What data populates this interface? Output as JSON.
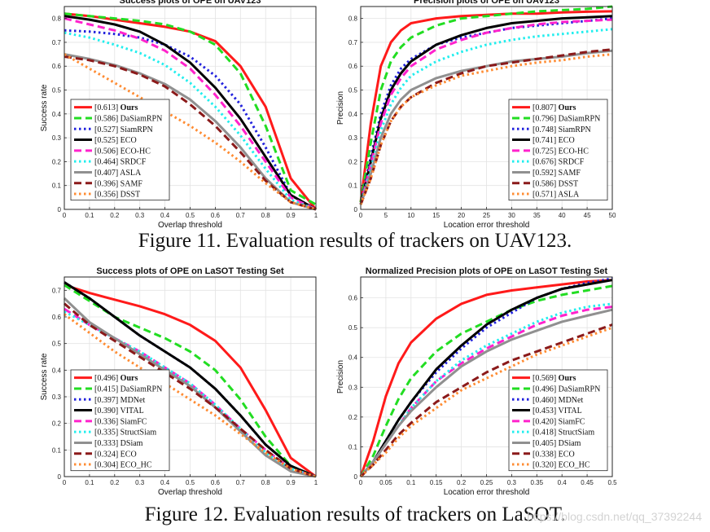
{
  "captions": {
    "fig11": "Figure 11. Evaluation results of trackers on UAV123.",
    "fig12": "Figure 12. Evaluation results of trackers on LaSOT."
  },
  "watermark": "https://blog.csdn.net/qq_37392244",
  "chart_data": [
    {
      "id": "uav-success",
      "type": "line",
      "title": "Success plots of OPE on UAV123",
      "xlabel": "Overlap threshold",
      "ylabel": "Success rate",
      "xlim": [
        0,
        1
      ],
      "ylim": [
        0,
        0.85
      ],
      "xticks": [
        0,
        0.1,
        0.2,
        0.3,
        0.4,
        0.5,
        0.6,
        0.7,
        0.8,
        0.9,
        1
      ],
      "yticks": [
        0,
        0.1,
        0.2,
        0.3,
        0.4,
        0.5,
        0.6,
        0.7,
        0.8
      ],
      "grid": true,
      "legend_position": "bottom-left",
      "x": [
        0,
        0.1,
        0.2,
        0.3,
        0.4,
        0.5,
        0.6,
        0.7,
        0.8,
        0.9,
        1
      ],
      "series": [
        {
          "name": "Ours",
          "score": "0.613",
          "color": "#ff1a1a",
          "dash": "solid",
          "bold": true,
          "values": [
            0.82,
            0.81,
            0.795,
            0.78,
            0.765,
            0.745,
            0.705,
            0.6,
            0.43,
            0.13,
            0.0
          ]
        },
        {
          "name": "DaSiamRPN",
          "score": "0.586",
          "color": "#22dd22",
          "dash": "dash",
          "values": [
            0.82,
            0.81,
            0.8,
            0.79,
            0.775,
            0.745,
            0.69,
            0.57,
            0.35,
            0.08,
            0.02
          ]
        },
        {
          "name": "SiamRPN",
          "score": "0.527",
          "color": "#2222dd",
          "dash": "dot",
          "values": [
            0.75,
            0.745,
            0.735,
            0.72,
            0.69,
            0.64,
            0.56,
            0.44,
            0.26,
            0.06,
            0.0
          ]
        },
        {
          "name": "ECO",
          "score": "0.525",
          "color": "#000000",
          "dash": "solid",
          "values": [
            0.81,
            0.795,
            0.775,
            0.745,
            0.69,
            0.615,
            0.51,
            0.38,
            0.22,
            0.06,
            0.0
          ]
        },
        {
          "name": "ECO-HC",
          "score": "0.506",
          "color": "#ff22cc",
          "dash": "dash",
          "values": [
            0.8,
            0.775,
            0.75,
            0.715,
            0.665,
            0.59,
            0.48,
            0.35,
            0.2,
            0.05,
            0.0
          ]
        },
        {
          "name": "SRDCF",
          "score": "0.464",
          "color": "#22eeee",
          "dash": "dot",
          "values": [
            0.74,
            0.72,
            0.69,
            0.655,
            0.605,
            0.53,
            0.43,
            0.31,
            0.17,
            0.04,
            0.0
          ]
        },
        {
          "name": "ASLA",
          "score": "0.407",
          "color": "#909090",
          "dash": "solid",
          "values": [
            0.65,
            0.63,
            0.605,
            0.57,
            0.525,
            0.46,
            0.37,
            0.26,
            0.13,
            0.03,
            0.0
          ]
        },
        {
          "name": "SAMF",
          "score": "0.396",
          "color": "#8b1a1a",
          "dash": "dash",
          "values": [
            0.64,
            0.625,
            0.6,
            0.565,
            0.515,
            0.44,
            0.35,
            0.24,
            0.12,
            0.03,
            0.0
          ]
        },
        {
          "name": "DSST",
          "score": "0.356",
          "color": "#ff8c33",
          "dash": "dot",
          "values": [
            0.65,
            0.59,
            0.53,
            0.47,
            0.41,
            0.35,
            0.28,
            0.2,
            0.11,
            0.03,
            0.0
          ]
        }
      ]
    },
    {
      "id": "uav-precision",
      "type": "line",
      "title": "Precision plots of OPE on UAV123",
      "xlabel": "Location error threshold",
      "ylabel": "Precision",
      "xlim": [
        0,
        50
      ],
      "ylim": [
        0,
        0.85
      ],
      "xticks": [
        0,
        5,
        10,
        15,
        20,
        25,
        30,
        35,
        40,
        45,
        50
      ],
      "yticks": [
        0,
        0.1,
        0.2,
        0.3,
        0.4,
        0.5,
        0.6,
        0.7,
        0.8
      ],
      "grid": true,
      "legend_position": "bottom-right",
      "x": [
        0,
        2,
        4,
        6,
        8,
        10,
        15,
        20,
        25,
        30,
        35,
        40,
        45,
        50
      ],
      "series": [
        {
          "name": "Ours",
          "score": "0.807",
          "color": "#ff1a1a",
          "dash": "solid",
          "bold": true,
          "values": [
            0.03,
            0.36,
            0.6,
            0.7,
            0.75,
            0.78,
            0.8,
            0.81,
            0.815,
            0.82,
            0.82,
            0.825,
            0.828,
            0.83
          ]
        },
        {
          "name": "DaSiamRPN",
          "score": "0.796",
          "color": "#22dd22",
          "dash": "dash",
          "values": [
            0.03,
            0.28,
            0.5,
            0.62,
            0.68,
            0.72,
            0.77,
            0.8,
            0.81,
            0.82,
            0.83,
            0.835,
            0.84,
            0.85
          ]
        },
        {
          "name": "SiamRPN",
          "score": "0.748",
          "color": "#2222dd",
          "dash": "dot",
          "values": [
            0.02,
            0.22,
            0.4,
            0.52,
            0.59,
            0.63,
            0.69,
            0.72,
            0.74,
            0.76,
            0.77,
            0.78,
            0.79,
            0.8
          ]
        },
        {
          "name": "ECO",
          "score": "0.741",
          "color": "#000000",
          "dash": "solid",
          "values": [
            0.02,
            0.2,
            0.38,
            0.5,
            0.57,
            0.62,
            0.69,
            0.73,
            0.76,
            0.78,
            0.79,
            0.8,
            0.805,
            0.81
          ]
        },
        {
          "name": "ECO-HC",
          "score": "0.725",
          "color": "#ff22cc",
          "dash": "dash",
          "values": [
            0.02,
            0.19,
            0.36,
            0.48,
            0.55,
            0.6,
            0.67,
            0.71,
            0.74,
            0.76,
            0.775,
            0.785,
            0.79,
            0.795
          ]
        },
        {
          "name": "SRDCF",
          "score": "0.676",
          "color": "#22eeee",
          "dash": "dot",
          "values": [
            0.02,
            0.17,
            0.33,
            0.44,
            0.51,
            0.56,
            0.62,
            0.66,
            0.69,
            0.71,
            0.725,
            0.735,
            0.745,
            0.755
          ]
        },
        {
          "name": "SAMF",
          "score": "0.592",
          "color": "#909090",
          "dash": "solid",
          "values": [
            0.02,
            0.15,
            0.3,
            0.4,
            0.46,
            0.5,
            0.55,
            0.58,
            0.6,
            0.62,
            0.63,
            0.64,
            0.655,
            0.665
          ]
        },
        {
          "name": "DSST",
          "score": "0.586",
          "color": "#8b1a1a",
          "dash": "dash",
          "values": [
            0.02,
            0.13,
            0.27,
            0.37,
            0.43,
            0.47,
            0.53,
            0.57,
            0.6,
            0.615,
            0.63,
            0.645,
            0.66,
            0.67
          ]
        },
        {
          "name": "ASLA",
          "score": "0.571",
          "color": "#ff8c33",
          "dash": "dot",
          "values": [
            0.02,
            0.13,
            0.27,
            0.37,
            0.43,
            0.47,
            0.52,
            0.56,
            0.58,
            0.6,
            0.615,
            0.625,
            0.64,
            0.65
          ]
        }
      ]
    },
    {
      "id": "lasot-success",
      "type": "line",
      "title": "Success plots of OPE on LaSOT Testing Set",
      "xlabel": "Overlap threshold",
      "ylabel": "Success rate",
      "xlim": [
        0,
        1
      ],
      "ylim": [
        0,
        0.75
      ],
      "xticks": [
        0,
        0.1,
        0.2,
        0.3,
        0.4,
        0.5,
        0.6,
        0.7,
        0.8,
        0.9,
        1
      ],
      "yticks": [
        0,
        0.1,
        0.2,
        0.3,
        0.4,
        0.5,
        0.6,
        0.7
      ],
      "grid": true,
      "legend_position": "bottom-left",
      "x": [
        0,
        0.1,
        0.2,
        0.3,
        0.4,
        0.5,
        0.6,
        0.7,
        0.8,
        0.9,
        1
      ],
      "series": [
        {
          "name": "Ours",
          "score": "0.496",
          "color": "#ff1a1a",
          "dash": "solid",
          "bold": true,
          "values": [
            0.72,
            0.69,
            0.665,
            0.64,
            0.61,
            0.57,
            0.51,
            0.41,
            0.25,
            0.07,
            0.0
          ]
        },
        {
          "name": "DaSiamRPN",
          "score": "0.415",
          "color": "#22dd22",
          "dash": "dash",
          "values": [
            0.72,
            0.66,
            0.6,
            0.56,
            0.52,
            0.47,
            0.4,
            0.29,
            0.15,
            0.04,
            0.0
          ]
        },
        {
          "name": "MDNet",
          "score": "0.397",
          "color": "#2222dd",
          "dash": "dot",
          "values": [
            0.73,
            0.67,
            0.6,
            0.53,
            0.47,
            0.41,
            0.33,
            0.23,
            0.12,
            0.04,
            0.0
          ]
        },
        {
          "name": "VITAL",
          "score": "0.390",
          "color": "#000000",
          "dash": "solid",
          "values": [
            0.73,
            0.67,
            0.6,
            0.53,
            0.47,
            0.41,
            0.33,
            0.23,
            0.12,
            0.04,
            0.0
          ]
        },
        {
          "name": "SiamFC",
          "score": "0.336",
          "color": "#ff22cc",
          "dash": "dash",
          "values": [
            0.63,
            0.57,
            0.52,
            0.47,
            0.41,
            0.35,
            0.27,
            0.18,
            0.1,
            0.03,
            0.0
          ]
        },
        {
          "name": "StructSiam",
          "score": "0.335",
          "color": "#22eeee",
          "dash": "dot",
          "values": [
            0.62,
            0.57,
            0.52,
            0.47,
            0.41,
            0.35,
            0.27,
            0.18,
            0.09,
            0.03,
            0.0
          ]
        },
        {
          "name": "DSiam",
          "score": "0.333",
          "color": "#909090",
          "dash": "solid",
          "values": [
            0.67,
            0.58,
            0.52,
            0.46,
            0.4,
            0.34,
            0.26,
            0.17,
            0.08,
            0.02,
            0.0
          ]
        },
        {
          "name": "ECO",
          "score": "0.324",
          "color": "#8b1a1a",
          "dash": "dash",
          "values": [
            0.65,
            0.57,
            0.51,
            0.45,
            0.39,
            0.33,
            0.26,
            0.18,
            0.1,
            0.03,
            0.0
          ]
        },
        {
          "name": "ECO_HC",
          "score": "0.304",
          "color": "#ff8c33",
          "dash": "dot",
          "values": [
            0.61,
            0.54,
            0.47,
            0.41,
            0.35,
            0.29,
            0.23,
            0.16,
            0.09,
            0.03,
            0.0
          ]
        }
      ]
    },
    {
      "id": "lasot-norm-precision",
      "type": "line",
      "title": "Normalized Precision plots of OPE on LaSOT Testing Set",
      "xlabel": "Location error threshold",
      "ylabel": "Precision",
      "xlim": [
        0,
        0.5
      ],
      "ylim": [
        0,
        0.67
      ],
      "xticks": [
        0,
        0.05,
        0.1,
        0.15,
        0.2,
        0.25,
        0.3,
        0.35,
        0.4,
        0.45,
        0.5
      ],
      "yticks": [
        0,
        0.1,
        0.2,
        0.3,
        0.4,
        0.5,
        0.6
      ],
      "grid": true,
      "legend_position": "bottom-right",
      "x": [
        0,
        0.025,
        0.05,
        0.075,
        0.1,
        0.15,
        0.2,
        0.25,
        0.3,
        0.35,
        0.4,
        0.45,
        0.5
      ],
      "series": [
        {
          "name": "Ours",
          "score": "0.569",
          "color": "#ff1a1a",
          "dash": "solid",
          "bold": true,
          "values": [
            0.0,
            0.12,
            0.27,
            0.38,
            0.45,
            0.53,
            0.58,
            0.61,
            0.625,
            0.635,
            0.645,
            0.655,
            0.66
          ]
        },
        {
          "name": "DaSiamRPN",
          "score": "0.496",
          "color": "#22dd22",
          "dash": "dash",
          "values": [
            0.0,
            0.07,
            0.17,
            0.26,
            0.33,
            0.42,
            0.48,
            0.52,
            0.56,
            0.59,
            0.61,
            0.625,
            0.64
          ]
        },
        {
          "name": "MDNet",
          "score": "0.460",
          "color": "#2222dd",
          "dash": "dot",
          "values": [
            0.0,
            0.05,
            0.12,
            0.19,
            0.25,
            0.35,
            0.43,
            0.5,
            0.55,
            0.6,
            0.63,
            0.65,
            0.665
          ]
        },
        {
          "name": "VITAL",
          "score": "0.453",
          "color": "#000000",
          "dash": "solid",
          "values": [
            0.0,
            0.05,
            0.12,
            0.19,
            0.25,
            0.36,
            0.44,
            0.51,
            0.56,
            0.6,
            0.63,
            0.645,
            0.66
          ]
        },
        {
          "name": "SiamFC",
          "score": "0.420",
          "color": "#ff22cc",
          "dash": "dash",
          "values": [
            0.0,
            0.05,
            0.11,
            0.17,
            0.23,
            0.32,
            0.38,
            0.43,
            0.47,
            0.51,
            0.54,
            0.56,
            0.57
          ]
        },
        {
          "name": "StructSiam",
          "score": "0.418",
          "color": "#22eeee",
          "dash": "dot",
          "values": [
            0.0,
            0.05,
            0.11,
            0.17,
            0.23,
            0.32,
            0.39,
            0.44,
            0.48,
            0.52,
            0.55,
            0.57,
            0.58
          ]
        },
        {
          "name": "DSiam",
          "score": "0.405",
          "color": "#909090",
          "dash": "solid",
          "values": [
            0.0,
            0.05,
            0.11,
            0.17,
            0.22,
            0.3,
            0.37,
            0.42,
            0.46,
            0.49,
            0.52,
            0.54,
            0.56
          ]
        },
        {
          "name": "ECO",
          "score": "0.338",
          "color": "#8b1a1a",
          "dash": "dash",
          "values": [
            0.0,
            0.04,
            0.09,
            0.14,
            0.18,
            0.25,
            0.3,
            0.35,
            0.39,
            0.42,
            0.45,
            0.48,
            0.51
          ]
        },
        {
          "name": "ECO_HC",
          "score": "0.320",
          "color": "#ff8c33",
          "dash": "dot",
          "values": [
            0.0,
            0.04,
            0.08,
            0.13,
            0.17,
            0.23,
            0.29,
            0.33,
            0.37,
            0.41,
            0.44,
            0.47,
            0.5
          ]
        }
      ]
    }
  ]
}
